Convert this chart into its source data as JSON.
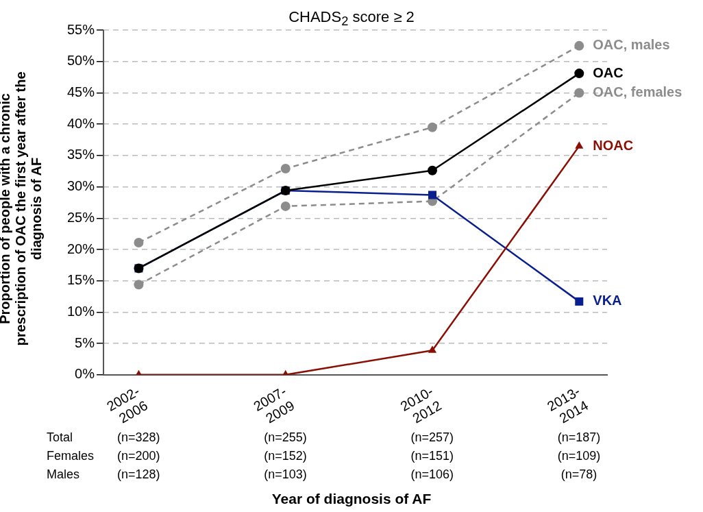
{
  "chart_data": {
    "type": "line",
    "title": "CHADS$_{2}$ score ≥ 2",
    "xlabel": "Year of diagnosis of AF",
    "ylabel": "Proportion of people with a chronic prescription of OAC the first year after the diagnosis of AF",
    "categories": [
      "2002-\n2006",
      "2007-\n2009",
      "2010-\n2012",
      "2013-\n2014"
    ],
    "series": [
      {
        "name": "OAC, males",
        "color": "#8c8c8c",
        "marker": "circle",
        "line_style": "dashed",
        "values": [
          21.1,
          32.9,
          39.5,
          52.5
        ]
      },
      {
        "name": "OAC, females",
        "color": "#8c8c8c",
        "marker": "circle",
        "line_style": "dashed",
        "values": [
          14.4,
          26.9,
          27.7,
          45.0
        ]
      },
      {
        "name": "VKA",
        "color": "#0a1f8f",
        "marker": "square",
        "line_style": "solid",
        "values": [
          17.0,
          29.4,
          28.7,
          11.7
        ]
      },
      {
        "name": "NOAC",
        "color": "#8b0e04",
        "marker": "triangle",
        "line_style": "solid",
        "values": [
          0,
          0,
          3.9,
          36.5
        ]
      },
      {
        "name": "OAC",
        "color": "#000000",
        "marker": "circle",
        "line_style": "solid",
        "values": [
          17.0,
          29.4,
          32.6,
          48.1
        ]
      }
    ],
    "ylim": [
      0,
      55
    ],
    "yticks": [
      {
        "value": 0,
        "label": "0%"
      },
      {
        "value": 5,
        "label": "5%"
      },
      {
        "value": 10,
        "label": "10%"
      },
      {
        "value": 15,
        "label": "15%"
      },
      {
        "value": 20,
        "label": "20%"
      },
      {
        "value": 25,
        "label": "25%"
      },
      {
        "value": 30,
        "label": "30%"
      },
      {
        "value": 35,
        "label": "35%"
      },
      {
        "value": 40,
        "label": "40%"
      },
      {
        "value": 45,
        "label": "45%"
      },
      {
        "value": 50,
        "label": "50%"
      },
      {
        "value": 55,
        "label": "55%"
      }
    ],
    "grid": "y",
    "legend": false,
    "annotations": [
      "Total",
      "Females",
      "Males",
      "(n=328)",
      "(n=255)",
      "(n=257)",
      "(n=187)",
      "(n=200)",
      "(n=152)",
      "(n=151)",
      "(n=109)",
      "(n=128)",
      "(n=103)",
      "(n=106)",
      "(n=78)"
    ]
  }
}
